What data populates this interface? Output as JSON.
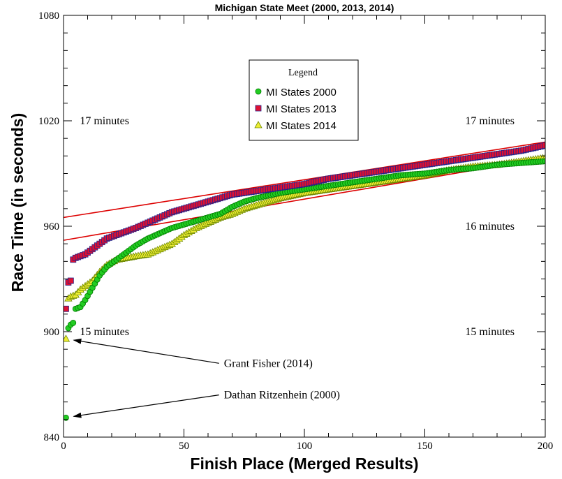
{
  "chart_data": {
    "type": "scatter",
    "title": "Michigan State Meet (2000, 2013, 2014)",
    "xlabel": "Finish Place (Merged Results)",
    "ylabel": "Race Time (in seconds)",
    "xlim": [
      0,
      200
    ],
    "ylim": [
      840,
      1080
    ],
    "x_ticks": [
      0,
      50,
      100,
      150,
      200
    ],
    "y_ticks": [
      840,
      900,
      960,
      1020,
      1080
    ],
    "grid": false,
    "legend": {
      "title": "Legend",
      "placement": "upper-center"
    },
    "series": [
      {
        "name": "MI States 2000",
        "marker": "circle",
        "color": "#22cc22",
        "stroke": "#007a00",
        "anchors": [
          [
            1,
            851
          ],
          [
            2,
            902
          ],
          [
            3,
            904
          ],
          [
            4,
            905
          ],
          [
            5,
            913
          ],
          [
            7,
            914
          ],
          [
            9,
            918
          ],
          [
            12,
            925
          ],
          [
            15,
            932
          ],
          [
            18,
            937
          ],
          [
            22,
            941
          ],
          [
            26,
            945
          ],
          [
            30,
            949
          ],
          [
            35,
            953
          ],
          [
            40,
            956
          ],
          [
            45,
            959
          ],
          [
            50,
            961
          ],
          [
            55,
            963
          ],
          [
            60,
            965
          ],
          [
            65,
            967
          ],
          [
            70,
            971
          ],
          [
            75,
            974
          ],
          [
            80,
            976
          ],
          [
            90,
            979
          ],
          [
            100,
            981
          ],
          [
            110,
            983
          ],
          [
            120,
            985
          ],
          [
            130,
            987
          ],
          [
            140,
            989
          ],
          [
            150,
            990
          ],
          [
            160,
            992
          ],
          [
            170,
            993
          ],
          [
            180,
            995
          ],
          [
            190,
            996
          ],
          [
            200,
            997
          ]
        ]
      },
      {
        "name": "MI States 2013",
        "marker": "square",
        "color": "#dd1133",
        "stroke": "#22228a",
        "anchors": [
          [
            1,
            913
          ],
          [
            2,
            928
          ],
          [
            3,
            929
          ],
          [
            4,
            941
          ],
          [
            5,
            942
          ],
          [
            7,
            943
          ],
          [
            9,
            944
          ],
          [
            12,
            947
          ],
          [
            15,
            950
          ],
          [
            18,
            953
          ],
          [
            22,
            955
          ],
          [
            26,
            957
          ],
          [
            30,
            959
          ],
          [
            35,
            962
          ],
          [
            40,
            965
          ],
          [
            45,
            968
          ],
          [
            50,
            970
          ],
          [
            55,
            972
          ],
          [
            60,
            974
          ],
          [
            65,
            976
          ],
          [
            70,
            978
          ],
          [
            75,
            979
          ],
          [
            80,
            980
          ],
          [
            90,
            982
          ],
          [
            100,
            984
          ],
          [
            110,
            987
          ],
          [
            120,
            989
          ],
          [
            130,
            991
          ],
          [
            140,
            993
          ],
          [
            150,
            995
          ],
          [
            160,
            997
          ],
          [
            170,
            999
          ],
          [
            180,
            1001
          ],
          [
            190,
            1003
          ],
          [
            200,
            1006
          ]
        ]
      },
      {
        "name": "MI States 2014",
        "marker": "triangle",
        "color": "#eeee33",
        "stroke": "#6f8a00",
        "anchors": [
          [
            1,
            896
          ],
          [
            2,
            919
          ],
          [
            3,
            920
          ],
          [
            5,
            921
          ],
          [
            7,
            924
          ],
          [
            9,
            926
          ],
          [
            12,
            929
          ],
          [
            15,
            934
          ],
          [
            18,
            938
          ],
          [
            22,
            941
          ],
          [
            26,
            942
          ],
          [
            30,
            943
          ],
          [
            35,
            944
          ],
          [
            40,
            947
          ],
          [
            45,
            950
          ],
          [
            50,
            955
          ],
          [
            55,
            959
          ],
          [
            60,
            962
          ],
          [
            65,
            965
          ],
          [
            70,
            967
          ],
          [
            75,
            970
          ],
          [
            80,
            972
          ],
          [
            90,
            976
          ],
          [
            100,
            979
          ],
          [
            110,
            981
          ],
          [
            120,
            983
          ],
          [
            130,
            985
          ],
          [
            140,
            987
          ],
          [
            150,
            989
          ],
          [
            160,
            992
          ],
          [
            170,
            994
          ],
          [
            180,
            995
          ],
          [
            190,
            997
          ],
          [
            200,
            999
          ]
        ]
      }
    ],
    "trend_lines": [
      {
        "from": [
          0,
          965
        ],
        "to": [
          205,
          1009
        ],
        "color": "#dd0000"
      },
      {
        "from": [
          0,
          952
        ],
        "to": [
          205,
          1000
        ],
        "color": "#dd0000"
      }
    ],
    "annotations": [
      {
        "text": "17 minutes",
        "at": [
          17,
          1020
        ]
      },
      {
        "text": "17 minutes",
        "at": [
          177,
          1020
        ]
      },
      {
        "text": "16 minutes",
        "at": [
          177,
          960
        ]
      },
      {
        "text": "15 minutes",
        "at": [
          17,
          900
        ]
      },
      {
        "text": "15 minutes",
        "at": [
          177,
          900
        ]
      },
      {
        "text": "Grant Fisher (2014)",
        "at": [
          55,
          882
        ],
        "arrow_to": [
          1,
          896
        ]
      },
      {
        "text": "Dathan Ritzenhein (2000)",
        "at": [
          55,
          864
        ],
        "arrow_to": [
          1,
          851
        ]
      }
    ]
  }
}
